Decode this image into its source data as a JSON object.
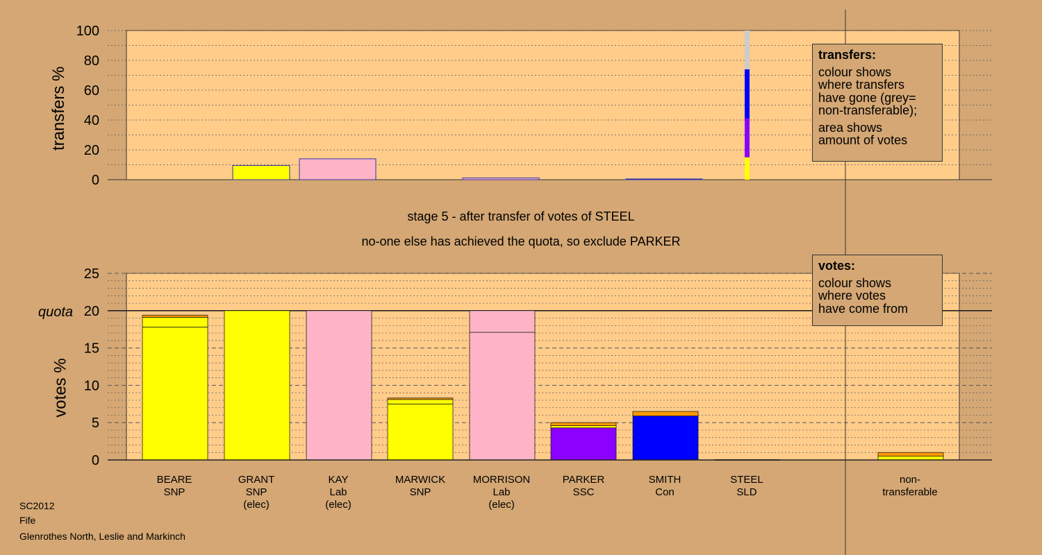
{
  "stage": {
    "line1": "stage 5 - after transfer of votes of STEEL",
    "line2": "no-one else has achieved the quota, so exclude PARKER"
  },
  "footer": {
    "election": "SC2012",
    "council": "Fife",
    "ward": "Glenrothes North, Leslie and Markinch"
  },
  "legends": {
    "transfers": {
      "title": "transfers:",
      "lines": [
        "colour shows",
        "where transfers",
        "have gone (grey=",
        "non-transferable);"
      ],
      "lines2": [
        "area shows",
        "amount of votes"
      ]
    },
    "votes": {
      "title": "votes:",
      "lines": [
        "colour shows",
        "where votes",
        "have come from"
      ]
    }
  },
  "colors": {
    "SNP": "#ffff00",
    "Lab": "#ffb3c6",
    "SSC": "#8b00ff",
    "Con": "#0000ff",
    "SLD": "#ff9900",
    "nontransferable": "#aaaaaa",
    "background": "#d4a774",
    "plot_background": "#ffcc8a"
  },
  "chart_data": [
    {
      "type": "bar",
      "title": "",
      "ylabel": "transfers %",
      "ylim": [
        0,
        100
      ],
      "yticks": [
        0,
        20,
        40,
        60,
        80,
        100
      ],
      "categories": [
        "BEARE",
        "GRANT",
        "KAY",
        "MARWICK",
        "MORRISON",
        "PARKER",
        "SMITH",
        "STEEL",
        "non-transferable"
      ],
      "transfers_from_STEEL": [
        {
          "to": "GRANT",
          "party": "SNP",
          "value": 9.5
        },
        {
          "to": "KAY",
          "party": "Lab",
          "value": 14
        },
        {
          "to": "MORRISON",
          "party": "Lab",
          "value": 1.2
        },
        {
          "to": "SMITH",
          "party": "Con",
          "value": 0.5
        }
      ],
      "steel_breakdown": [
        {
          "name": "SNP",
          "value": 15
        },
        {
          "name": "SSC",
          "value": 26
        },
        {
          "name": "Con",
          "value": 33
        },
        {
          "name": "non-transferable",
          "value": 26
        }
      ]
    },
    {
      "type": "bar",
      "title": "",
      "ylabel": "votes %",
      "ylim": [
        0,
        25
      ],
      "yticks": [
        0,
        5,
        10,
        15,
        20,
        25
      ],
      "quota": 20,
      "quota_label": "quota",
      "candidates": [
        {
          "name": "BEARE",
          "party": "SNP",
          "status": "",
          "segments": [
            {
              "party": "SNP",
              "value": 17.8
            },
            {
              "party": "SNP",
              "value": 1.3
            },
            {
              "party": "SLD",
              "value": 0.3
            }
          ]
        },
        {
          "name": "GRANT",
          "party": "SNP",
          "status": "(elec)",
          "segments": [
            {
              "party": "SNP",
              "value": 20
            }
          ]
        },
        {
          "name": "KAY",
          "party": "Lab",
          "status": "(elec)",
          "segments": [
            {
              "party": "Lab",
              "value": 20
            }
          ]
        },
        {
          "name": "MARWICK",
          "party": "SNP",
          "status": "",
          "segments": [
            {
              "party": "SNP",
              "value": 7.5
            },
            {
              "party": "SNP",
              "value": 0.6
            },
            {
              "party": "SLD",
              "value": 0.2
            }
          ]
        },
        {
          "name": "MORRISON",
          "party": "Lab",
          "status": "(elec)",
          "segments": [
            {
              "party": "Lab",
              "value": 17.1
            },
            {
              "party": "Lab",
              "value": 2.9
            }
          ]
        },
        {
          "name": "PARKER",
          "party": "SSC",
          "status": "",
          "segments": [
            {
              "party": "SSC",
              "value": 4.3
            },
            {
              "party": "SNP",
              "value": 0.3
            },
            {
              "party": "SLD",
              "value": 0.4
            }
          ]
        },
        {
          "name": "SMITH",
          "party": "Con",
          "status": "",
          "segments": [
            {
              "party": "Con",
              "value": 5.9
            },
            {
              "party": "SLD",
              "value": 0.6
            }
          ]
        },
        {
          "name": "STEEL",
          "party": "SLD",
          "status": "",
          "segments": [
            {
              "party": "SLD",
              "value": 0.05
            }
          ]
        },
        {
          "name": "non-",
          "party": "transferable",
          "status": "",
          "segments": [
            {
              "party": "SNP",
              "value": 0.5
            },
            {
              "party": "SLD",
              "value": 0.5
            }
          ]
        }
      ]
    }
  ]
}
